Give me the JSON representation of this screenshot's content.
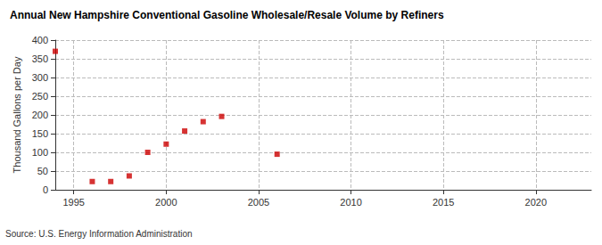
{
  "chart_data": {
    "type": "scatter",
    "title": "Annual New Hampshire Conventional Gasoline Wholesale/Resale Volume by Refiners",
    "y_label": "Thousand Gallons per Day",
    "source": "Source: U.S. Energy Information Administration",
    "x": [
      1994,
      1996,
      1997,
      1998,
      1999,
      2000,
      2001,
      2002,
      2003,
      2006
    ],
    "values": [
      370,
      22,
      22,
      37,
      100,
      122,
      157,
      182,
      196,
      95
    ],
    "color": "#cc0000",
    "marker": "square",
    "xlim": [
      1994,
      2023
    ],
    "xticks": [
      1995,
      2000,
      2005,
      2010,
      2015,
      2020
    ],
    "ylim": [
      0,
      400
    ],
    "yticks": [
      0,
      50,
      100,
      150,
      200,
      250,
      300,
      350,
      400
    ],
    "grid": true
  }
}
